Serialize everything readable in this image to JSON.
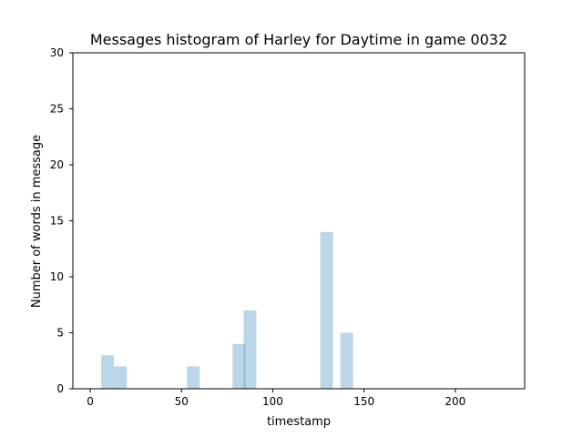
{
  "chart_data": {
    "type": "bar",
    "title": "Messages histogram of Harley for Daytime in game 0032",
    "xlabel": "timestamp",
    "ylabel": "Number of words in message",
    "xlim": [
      -9.5,
      238
    ],
    "ylim": [
      0,
      30
    ],
    "xticks": [
      0,
      50,
      100,
      150,
      200
    ],
    "yticks": [
      0,
      5,
      10,
      15,
      20,
      25,
      30
    ],
    "bar_color": "#1f77b4",
    "bar_opacity": 0.3,
    "grid": false,
    "bars": [
      {
        "x": 6,
        "width": 7,
        "value": 3
      },
      {
        "x": 13,
        "width": 7,
        "value": 2
      },
      {
        "x": 53,
        "width": 7,
        "value": 2
      },
      {
        "x": 78,
        "width": 7,
        "value": 4
      },
      {
        "x": 84,
        "width": 7,
        "value": 7
      },
      {
        "x": 126,
        "width": 7,
        "value": 14
      },
      {
        "x": 137,
        "width": 7,
        "value": 5
      }
    ]
  }
}
